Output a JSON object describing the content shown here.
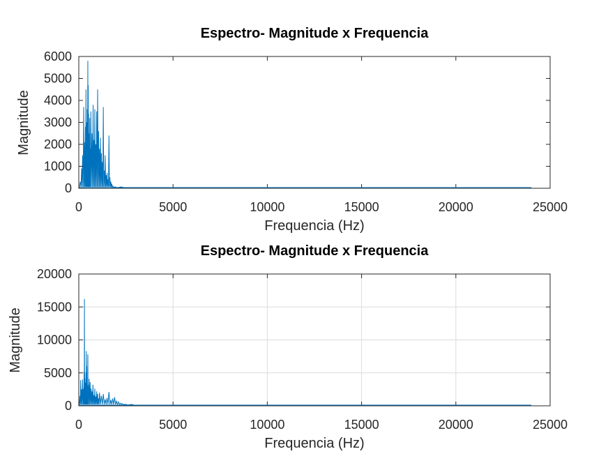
{
  "chart_data": [
    {
      "type": "line",
      "title": "Espectro- Magnitude x Frequencia",
      "xlabel": "Frequencia (Hz)",
      "ylabel": "Magnitude",
      "xlim": [
        0,
        25000
      ],
      "ylim": [
        0,
        6000
      ],
      "xticks": [
        0,
        5000,
        10000,
        15000,
        20000,
        25000
      ],
      "yticks": [
        0,
        1000,
        2000,
        3000,
        4000,
        5000,
        6000
      ],
      "grid": false,
      "line_color": "#0072BD",
      "x_end": 24000,
      "series": [
        {
          "x": [
            0,
            80,
            150,
            200,
            260,
            300,
            350,
            380,
            420,
            450,
            480,
            500,
            520,
            550,
            580,
            600,
            640,
            700,
            760,
            800,
            850,
            900,
            950,
            1000,
            1050,
            1100,
            1150,
            1200,
            1250,
            1300,
            1350,
            1400,
            1450,
            1500,
            1550,
            1600,
            1650,
            1700,
            1750,
            1800,
            1900,
            2000,
            2500,
            5000,
            10000,
            15000,
            20000,
            24000
          ],
          "y": [
            0,
            300,
            900,
            1500,
            3700,
            2100,
            2800,
            4500,
            3000,
            3600,
            5800,
            4700,
            3400,
            2500,
            3200,
            1800,
            3500,
            2500,
            3800,
            2200,
            3600,
            2000,
            3500,
            4500,
            2600,
            1800,
            2300,
            1600,
            1200,
            3700,
            800,
            1500,
            600,
            700,
            400,
            2400,
            500,
            300,
            200,
            100,
            40,
            20,
            5,
            2,
            1,
            1,
            1,
            0
          ]
        }
      ]
    },
    {
      "type": "line",
      "title": "Espectro- Magnitude x Frequencia",
      "xlabel": "Frequencia (Hz)",
      "ylabel": "Magnitude",
      "xlim": [
        0,
        25000
      ],
      "ylim": [
        0,
        20000
      ],
      "xticks": [
        0,
        5000,
        10000,
        15000,
        20000,
        25000
      ],
      "yticks": [
        0,
        5000,
        10000,
        15000,
        20000
      ],
      "grid": true,
      "line_color": "#0072BD",
      "x_end": 24000,
      "series": [
        {
          "x": [
            0,
            60,
            100,
            150,
            200,
            250,
            280,
            300,
            320,
            350,
            380,
            400,
            420,
            450,
            480,
            500,
            550,
            600,
            650,
            700,
            750,
            800,
            850,
            900,
            950,
            1000,
            1050,
            1100,
            1200,
            1300,
            1400,
            1500,
            1600,
            1700,
            1800,
            1900,
            2000,
            2100,
            2200,
            2300,
            2400,
            2600,
            3000,
            5000,
            10000,
            15000,
            20000,
            24000
          ],
          "y": [
            0,
            1500,
            3900,
            2500,
            4000,
            2600,
            5200,
            16200,
            4200,
            3500,
            5000,
            8300,
            6000,
            3000,
            7800,
            3200,
            4100,
            3600,
            2600,
            2200,
            3200,
            1600,
            2600,
            1400,
            2200,
            1800,
            1100,
            2000,
            1500,
            1800,
            1000,
            1200,
            2100,
            900,
            1100,
            1300,
            700,
            600,
            400,
            350,
            200,
            120,
            50,
            10,
            5,
            3,
            2,
            0
          ]
        }
      ]
    }
  ]
}
